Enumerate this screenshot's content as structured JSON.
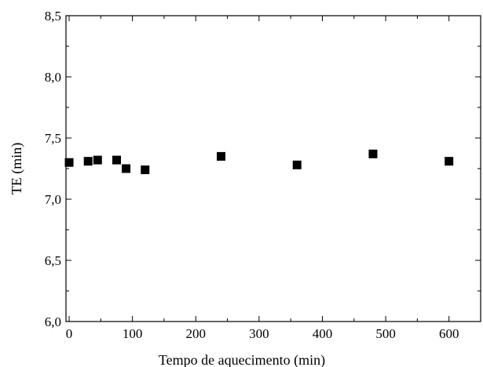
{
  "chart_data": {
    "type": "scatter",
    "title": "",
    "xlabel": "Tempo de aquecimento (min)",
    "ylabel": "TE (min)",
    "xlim": [
      -5,
      650
    ],
    "ylim": [
      6.0,
      8.5
    ],
    "xticks": [
      0,
      100,
      200,
      300,
      400,
      500,
      600
    ],
    "xtick_labels": [
      "0",
      "100",
      "200",
      "300",
      "400",
      "500",
      "600"
    ],
    "yticks": [
      6.0,
      6.5,
      7.0,
      7.5,
      8.0,
      8.5
    ],
    "ytick_labels": [
      "6,0",
      "6,5",
      "7,0",
      "7,5",
      "8,0",
      "8,5"
    ],
    "grid": false,
    "marker": "square",
    "marker_color": "#000000",
    "points": [
      {
        "x": 0,
        "y": 7.3
      },
      {
        "x": 30,
        "y": 7.31
      },
      {
        "x": 45,
        "y": 7.32
      },
      {
        "x": 75,
        "y": 7.32
      },
      {
        "x": 90,
        "y": 7.25
      },
      {
        "x": 120,
        "y": 7.24
      },
      {
        "x": 240,
        "y": 7.35
      },
      {
        "x": 360,
        "y": 7.28
      },
      {
        "x": 480,
        "y": 7.37
      },
      {
        "x": 600,
        "y": 7.31
      }
    ]
  }
}
